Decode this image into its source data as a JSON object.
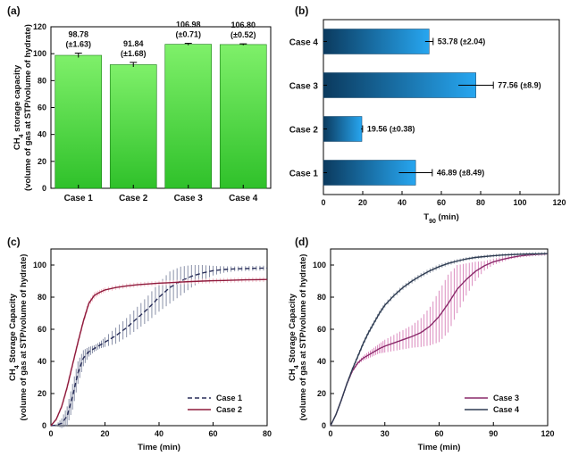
{
  "chart_data": [
    {
      "panel": "(a)",
      "type": "bar",
      "categories": [
        "Case 1",
        "Case 2",
        "Case 3",
        "Case 4"
      ],
      "values": [
        98.78,
        91.84,
        106.98,
        106.8
      ],
      "errors": [
        1.63,
        1.68,
        0.71,
        0.52
      ],
      "value_labels": [
        [
          "98.78",
          "(±1.63)"
        ],
        [
          "91.84",
          "(±1.68)"
        ],
        [
          "106.98",
          "(±0.71)"
        ],
        [
          "106.80",
          "(±0.52)"
        ]
      ],
      "ylabel_line1": "CH",
      "ylabel_sub": "4",
      "ylabel_line1_rest": " storage capacity",
      "ylabel_line2": "(volume of gas at STP/volume of hydrate)",
      "ylim": [
        0,
        120
      ],
      "yticks": [
        "0",
        "20",
        "40",
        "60",
        "80",
        "100",
        "120"
      ],
      "color": "#4ddc3e"
    },
    {
      "panel": "(b)",
      "type": "bar",
      "orientation": "horizontal",
      "categories": [
        "Case 1",
        "Case 2",
        "Case 3",
        "Case 4"
      ],
      "values": [
        46.89,
        19.56,
        77.56,
        53.78
      ],
      "errors": [
        8.49,
        0.38,
        8.9,
        2.04
      ],
      "value_labels": [
        "46.89 (±8.49)",
        "19.56 (±0.38)",
        "77.56 (±8.9)",
        "53.78 (±2.04)"
      ],
      "xlabel": "T",
      "xlabel_sub": "90",
      "xlabel_rest": " (min)",
      "xlim": [
        0,
        120
      ],
      "xticks": [
        "0",
        "20",
        "40",
        "60",
        "80",
        "100",
        "120"
      ],
      "color_start": "#0b3a5e",
      "color_end": "#27a6f0"
    },
    {
      "panel": "(c)",
      "type": "line",
      "xlabel": "Time (min)",
      "ylabel_line1": "CH",
      "ylabel_sub": "4",
      "ylabel_line1_rest": " Storage Capacity",
      "ylabel_line2": "(volume of gas at STP/volume of hydrate)",
      "xlim": [
        0,
        80
      ],
      "ylim": [
        0,
        110
      ],
      "xticks": [
        "0",
        "20",
        "40",
        "60",
        "80"
      ],
      "yticks": [
        "0",
        "20",
        "40",
        "60",
        "80",
        "100"
      ],
      "series": [
        {
          "name": "Case 1",
          "style": "dashed",
          "color": "#2a2f5a",
          "band_color": "#7c849e",
          "x": [
            0,
            2,
            4,
            6,
            8,
            10,
            12,
            14,
            16,
            18,
            20,
            24,
            28,
            32,
            36,
            40,
            44,
            48,
            52,
            56,
            60,
            64,
            68,
            72,
            76,
            80
          ],
          "y": [
            0,
            0.3,
            1.5,
            6,
            18,
            33,
            42,
            46,
            48,
            50,
            52,
            56,
            61,
            67,
            73,
            80,
            86,
            90,
            93,
            95,
            96.5,
            97.2,
            97.6,
            97.8,
            98.0,
            98.1
          ],
          "err": [
            0,
            0.5,
            3,
            6,
            8,
            7,
            5,
            3,
            2,
            2,
            3,
            5,
            6,
            7,
            8,
            9,
            10,
            9,
            7,
            5,
            3,
            2,
            1.5,
            1.5,
            1.5,
            1.5
          ]
        },
        {
          "name": "Case 2",
          "style": "solid",
          "color": "#8e1a3c",
          "band_color": "#f3b7c3",
          "x": [
            0,
            2,
            4,
            6,
            8,
            10,
            12,
            14,
            16,
            18,
            20,
            24,
            28,
            32,
            36,
            40,
            44,
            48,
            52,
            56,
            60,
            64,
            68,
            72,
            76,
            80
          ],
          "y": [
            0,
            4,
            12,
            24,
            38,
            52,
            65,
            76,
            81,
            83,
            84.5,
            86,
            87,
            87.7,
            88.2,
            88.7,
            89.0,
            89.4,
            89.7,
            90.0,
            90.2,
            90.4,
            90.6,
            90.8,
            90.9,
            91.0
          ],
          "err": [
            0,
            1,
            1.5,
            2,
            2,
            2,
            2,
            2,
            2,
            1.5,
            1.5,
            1.5,
            1.5,
            1.5,
            1.5,
            1.5,
            1.5,
            1.5,
            1.5,
            1.5,
            1.5,
            1.5,
            1.5,
            1.5,
            1.5,
            1.5
          ]
        }
      ]
    },
    {
      "panel": "(d)",
      "type": "line",
      "xlabel": "Time (min)",
      "ylabel_line1": "CH",
      "ylabel_sub": "4",
      "ylabel_line1_rest": " Storage Capacity",
      "ylabel_line2": "(volume of gas at STP/volume of hydrate)",
      "xlim": [
        0,
        120
      ],
      "ylim": [
        0,
        110
      ],
      "xticks": [
        "0",
        "30",
        "60",
        "90",
        "120"
      ],
      "yticks": [
        "0",
        "20",
        "40",
        "60",
        "80",
        "100"
      ],
      "series": [
        {
          "name": "Case 3",
          "style": "solid",
          "color": "#8a2a6a",
          "band_color": "#d77fb8",
          "x": [
            0,
            3,
            6,
            9,
            12,
            15,
            18,
            21,
            24,
            27,
            30,
            35,
            40,
            45,
            50,
            55,
            60,
            65,
            70,
            75,
            80,
            85,
            90,
            95,
            100,
            105,
            110,
            115,
            120
          ],
          "y": [
            0,
            7,
            16,
            26,
            34,
            39,
            42,
            44,
            46,
            48,
            49.5,
            51.5,
            53.5,
            55.5,
            58,
            62,
            68,
            76,
            85,
            91,
            96,
            99.5,
            102,
            103.5,
            104.8,
            105.7,
            106.3,
            106.7,
            107.0
          ],
          "err": [
            0,
            0.5,
            0.8,
            1,
            1,
            1,
            1.5,
            2,
            2.5,
            3,
            4,
            5,
            6,
            7,
            9,
            12,
            16,
            18,
            15,
            10,
            6,
            3,
            2,
            1.5,
            1,
            1,
            1,
            1,
            1
          ]
        },
        {
          "name": "Case 4",
          "style": "solid",
          "color": "#2e3c52",
          "band_color": "#8e97a6",
          "x": [
            0,
            3,
            6,
            9,
            12,
            15,
            18,
            21,
            24,
            27,
            30,
            35,
            40,
            45,
            50,
            55,
            60,
            65,
            70,
            75,
            80,
            85,
            90,
            95,
            100,
            105,
            110,
            115,
            120
          ],
          "y": [
            0,
            7,
            16,
            26,
            35,
            43,
            51,
            58,
            64,
            70,
            75,
            81,
            86,
            90,
            93.5,
            96.5,
            99,
            101,
            102.5,
            103.8,
            104.7,
            105.3,
            105.8,
            106.2,
            106.5,
            106.7,
            106.9,
            107.0,
            107.1
          ],
          "err": [
            0,
            0.5,
            0.8,
            1,
            1.2,
            1.5,
            1.5,
            1.5,
            1.5,
            1.5,
            1.5,
            1.5,
            1.5,
            1.5,
            1.5,
            1.5,
            1.5,
            1.2,
            1.2,
            1,
            1,
            1,
            1,
            1,
            1,
            1,
            1,
            1,
            1
          ]
        }
      ]
    }
  ]
}
